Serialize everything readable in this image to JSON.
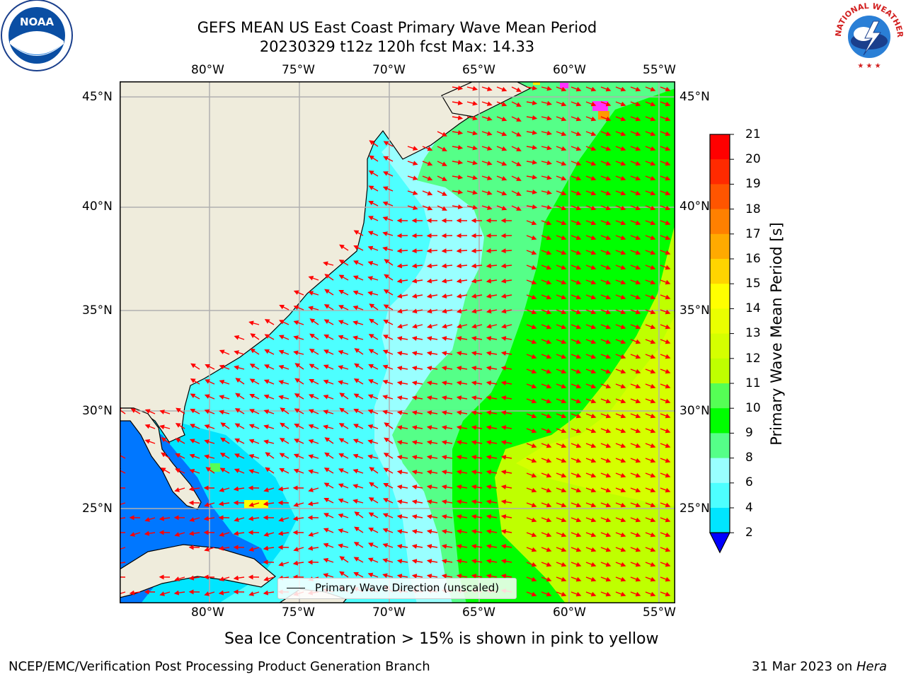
{
  "title": {
    "line1": "GEFS MEAN US East Coast Primary Wave Mean Period",
    "line2": "20230329 t12z 120h fcst   Max: 14.33"
  },
  "logos": {
    "left": "noaa-logo",
    "right": "national-weather-service-logo",
    "nws_text": "NATIONAL WEATHER SERVICE"
  },
  "map": {
    "lon_labels": [
      "80°W",
      "75°W",
      "70°W",
      "65°W",
      "60°W",
      "55°W"
    ],
    "lat_labels": [
      "45°N",
      "40°N",
      "35°N",
      "30°N",
      "25°N"
    ],
    "extent": {
      "lon": [
        -85,
        -54
      ],
      "lat": [
        20.5,
        46
      ]
    },
    "land_color": "#efecdc",
    "grid_color": "#b0b0b0",
    "arrow_color": "#ff0000",
    "ice_colors": [
      "#ff33ff",
      "#ff9900",
      "#ffee00"
    ]
  },
  "legend": {
    "label": "Primary Wave Direction (unscaled)"
  },
  "colorbar": {
    "label": "Primary Wave Mean Period [s]",
    "ticks": [
      "21",
      "20",
      "19",
      "18",
      "17",
      "16",
      "15",
      "14",
      "13",
      "12",
      "11",
      "10",
      "9",
      "8",
      "6",
      "4",
      "2"
    ],
    "colors": [
      "#ff0000",
      "#ff2a00",
      "#ff5500",
      "#ff8000",
      "#ffaa00",
      "#ffd400",
      "#ffff00",
      "#eaff00",
      "#d5ff00",
      "#bfff00",
      "#55ff55",
      "#00ff00",
      "#55ff88",
      "#99ffff",
      "#4dffff",
      "#00e5ff",
      "#0077ff"
    ],
    "extend_color": "#0000ff"
  },
  "footer": {
    "note": "Sea Ice Concentration > 15% is shown in pink to yellow",
    "credit": "NCEP/EMC/Verification Post Processing Product Generation Branch",
    "date": "31 Mar 2023 on",
    "machine": "Hera"
  }
}
